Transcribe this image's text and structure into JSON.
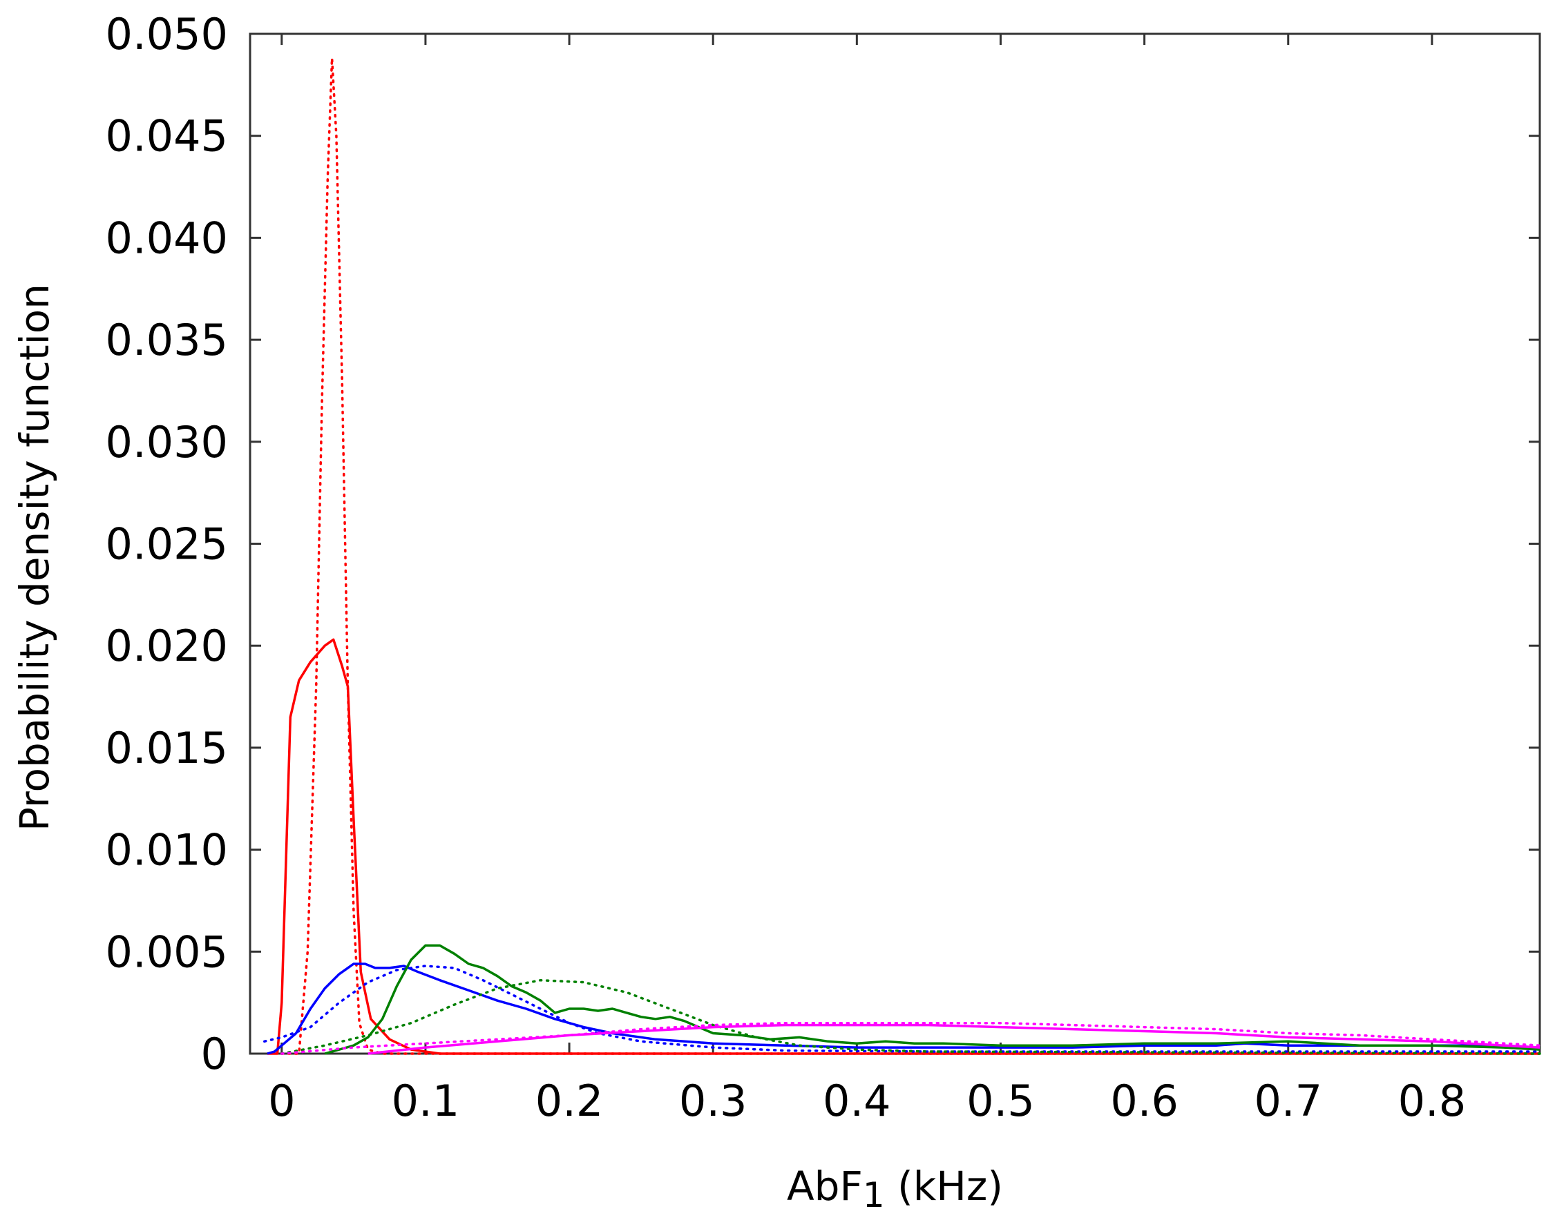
{
  "chart_data": {
    "type": "line",
    "title": "",
    "xlabel": "AbF",
    "xlabel_subscript": "1",
    "xlabel_unit": " (kHz)",
    "ylabel": "Probability density function",
    "xlim": [
      -0.022,
      0.875
    ],
    "ylim": [
      0,
      0.05
    ],
    "grid": false,
    "legend": "none",
    "x_ticks": [
      {
        "value": 0,
        "label": "0"
      },
      {
        "value": 0.1,
        "label": "0.1"
      },
      {
        "value": 0.2,
        "label": "0.2"
      },
      {
        "value": 0.3,
        "label": "0.3"
      },
      {
        "value": 0.4,
        "label": "0.4"
      },
      {
        "value": 0.5,
        "label": "0.5"
      },
      {
        "value": 0.6,
        "label": "0.6"
      },
      {
        "value": 0.7,
        "label": "0.7"
      },
      {
        "value": 0.8,
        "label": "0.8"
      }
    ],
    "y_ticks": [
      {
        "value": 0,
        "label": "0"
      },
      {
        "value": 0.005,
        "label": "0.005"
      },
      {
        "value": 0.01,
        "label": "0.010"
      },
      {
        "value": 0.015,
        "label": "0.015"
      },
      {
        "value": 0.02,
        "label": "0.020"
      },
      {
        "value": 0.025,
        "label": "0.025"
      },
      {
        "value": 0.03,
        "label": "0.030"
      },
      {
        "value": 0.035,
        "label": "0.035"
      },
      {
        "value": 0.04,
        "label": "0.040"
      },
      {
        "value": 0.045,
        "label": "0.045"
      },
      {
        "value": 0.05,
        "label": "0.050"
      }
    ],
    "series": [
      {
        "color": "#ff0000",
        "style": "dotted",
        "points": [
          [
            0.0,
            0.0
          ],
          [
            0.012,
            0.0
          ],
          [
            0.018,
            0.005
          ],
          [
            0.024,
            0.018
          ],
          [
            0.028,
            0.032
          ],
          [
            0.032,
            0.043
          ],
          [
            0.035,
            0.0488
          ],
          [
            0.038,
            0.045
          ],
          [
            0.042,
            0.033
          ],
          [
            0.046,
            0.018
          ],
          [
            0.05,
            0.007
          ],
          [
            0.054,
            0.0015
          ],
          [
            0.06,
            0.0002
          ],
          [
            0.07,
            0.0
          ],
          [
            0.875,
            0.0
          ]
        ]
      },
      {
        "color": "#ff0000",
        "style": "solid",
        "points": [
          [
            -0.01,
            0.0
          ],
          [
            -0.003,
            0.0
          ],
          [
            0.0,
            0.0025
          ],
          [
            0.006,
            0.0165
          ],
          [
            0.012,
            0.0183
          ],
          [
            0.02,
            0.0192
          ],
          [
            0.03,
            0.02
          ],
          [
            0.036,
            0.0203
          ],
          [
            0.042,
            0.019
          ],
          [
            0.046,
            0.018
          ],
          [
            0.05,
            0.0115
          ],
          [
            0.055,
            0.004
          ],
          [
            0.062,
            0.0017
          ],
          [
            0.075,
            0.0007
          ],
          [
            0.09,
            0.0002
          ],
          [
            0.11,
            0.0
          ],
          [
            0.875,
            0.0
          ]
        ]
      },
      {
        "color": "#0000ff",
        "style": "dotted",
        "points": [
          [
            -0.012,
            0.0006
          ],
          [
            0.0,
            0.0008
          ],
          [
            0.02,
            0.0013
          ],
          [
            0.04,
            0.0025
          ],
          [
            0.06,
            0.0035
          ],
          [
            0.08,
            0.0041
          ],
          [
            0.1,
            0.0043
          ],
          [
            0.12,
            0.0042
          ],
          [
            0.14,
            0.0036
          ],
          [
            0.16,
            0.0029
          ],
          [
            0.18,
            0.0022
          ],
          [
            0.2,
            0.0015
          ],
          [
            0.22,
            0.001
          ],
          [
            0.25,
            0.0006
          ],
          [
            0.3,
            0.0003
          ],
          [
            0.35,
            0.00015
          ],
          [
            0.45,
            0.0001
          ],
          [
            0.6,
            0.0001
          ],
          [
            0.75,
            0.0001
          ],
          [
            0.875,
            0.0001
          ]
        ]
      },
      {
        "color": "#0000ff",
        "style": "solid",
        "points": [
          [
            -0.01,
            0.0
          ],
          [
            -0.005,
            0.0001
          ],
          [
            0.0,
            0.0004
          ],
          [
            0.01,
            0.001
          ],
          [
            0.02,
            0.0022
          ],
          [
            0.03,
            0.0032
          ],
          [
            0.04,
            0.0039
          ],
          [
            0.05,
            0.0044
          ],
          [
            0.058,
            0.0044
          ],
          [
            0.065,
            0.0042
          ],
          [
            0.075,
            0.0042
          ],
          [
            0.085,
            0.0043
          ],
          [
            0.095,
            0.004
          ],
          [
            0.11,
            0.0036
          ],
          [
            0.13,
            0.0031
          ],
          [
            0.15,
            0.0026
          ],
          [
            0.17,
            0.0022
          ],
          [
            0.19,
            0.0017
          ],
          [
            0.21,
            0.0013
          ],
          [
            0.23,
            0.001
          ],
          [
            0.26,
            0.0007
          ],
          [
            0.3,
            0.0005
          ],
          [
            0.35,
            0.0004
          ],
          [
            0.4,
            0.0003
          ],
          [
            0.45,
            0.0003
          ],
          [
            0.5,
            0.0003
          ],
          [
            0.55,
            0.0003
          ],
          [
            0.6,
            0.0004
          ],
          [
            0.65,
            0.0004
          ],
          [
            0.67,
            0.0005
          ],
          [
            0.7,
            0.0004
          ],
          [
            0.75,
            0.0004
          ],
          [
            0.8,
            0.0004
          ],
          [
            0.85,
            0.0004
          ],
          [
            0.875,
            0.0003
          ]
        ]
      },
      {
        "color": "#008000",
        "style": "dotted",
        "points": [
          [
            0.0,
            0.0
          ],
          [
            0.03,
            0.0004
          ],
          [
            0.06,
            0.0009
          ],
          [
            0.09,
            0.0015
          ],
          [
            0.12,
            0.0024
          ],
          [
            0.15,
            0.0032
          ],
          [
            0.18,
            0.0036
          ],
          [
            0.21,
            0.0035
          ],
          [
            0.24,
            0.003
          ],
          [
            0.27,
            0.0022
          ],
          [
            0.3,
            0.0014
          ],
          [
            0.33,
            0.0008
          ],
          [
            0.36,
            0.0004
          ],
          [
            0.4,
            0.0002
          ],
          [
            0.45,
            0.0001
          ],
          [
            0.875,
            0.0
          ]
        ]
      },
      {
        "color": "#008000",
        "style": "solid",
        "points": [
          [
            0.03,
            0.0
          ],
          [
            0.05,
            0.0004
          ],
          [
            0.06,
            0.0008
          ],
          [
            0.07,
            0.0017
          ],
          [
            0.08,
            0.0033
          ],
          [
            0.09,
            0.0046
          ],
          [
            0.1,
            0.0053
          ],
          [
            0.11,
            0.0053
          ],
          [
            0.12,
            0.0049
          ],
          [
            0.13,
            0.0044
          ],
          [
            0.14,
            0.0042
          ],
          [
            0.15,
            0.0038
          ],
          [
            0.16,
            0.0033
          ],
          [
            0.17,
            0.003
          ],
          [
            0.18,
            0.0026
          ],
          [
            0.19,
            0.002
          ],
          [
            0.2,
            0.0022
          ],
          [
            0.21,
            0.0022
          ],
          [
            0.22,
            0.0021
          ],
          [
            0.23,
            0.0022
          ],
          [
            0.24,
            0.002
          ],
          [
            0.25,
            0.0018
          ],
          [
            0.26,
            0.0017
          ],
          [
            0.27,
            0.0018
          ],
          [
            0.28,
            0.0016
          ],
          [
            0.29,
            0.0013
          ],
          [
            0.3,
            0.001
          ],
          [
            0.32,
            0.0009
          ],
          [
            0.34,
            0.0007
          ],
          [
            0.36,
            0.0008
          ],
          [
            0.38,
            0.0006
          ],
          [
            0.4,
            0.0005
          ],
          [
            0.42,
            0.0006
          ],
          [
            0.44,
            0.0005
          ],
          [
            0.46,
            0.0005
          ],
          [
            0.5,
            0.0004
          ],
          [
            0.55,
            0.0004
          ],
          [
            0.6,
            0.0005
          ],
          [
            0.65,
            0.0005
          ],
          [
            0.7,
            0.0006
          ],
          [
            0.75,
            0.0004
          ],
          [
            0.8,
            0.0004
          ],
          [
            0.85,
            0.0003
          ],
          [
            0.875,
            0.0002
          ]
        ]
      },
      {
        "color": "#ff00ff",
        "style": "dotted",
        "points": [
          [
            0.0,
            0.0
          ],
          [
            0.05,
            0.0003
          ],
          [
            0.1,
            0.0005
          ],
          [
            0.15,
            0.0007
          ],
          [
            0.2,
            0.0009
          ],
          [
            0.25,
            0.0012
          ],
          [
            0.3,
            0.0014
          ],
          [
            0.35,
            0.0015
          ],
          [
            0.4,
            0.0015
          ],
          [
            0.45,
            0.0015
          ],
          [
            0.5,
            0.0015
          ],
          [
            0.55,
            0.0014
          ],
          [
            0.6,
            0.0013
          ],
          [
            0.65,
            0.0012
          ],
          [
            0.7,
            0.001
          ],
          [
            0.75,
            0.0009
          ],
          [
            0.8,
            0.0007
          ],
          [
            0.85,
            0.0005
          ],
          [
            0.875,
            0.0004
          ]
        ]
      },
      {
        "color": "#ff00ff",
        "style": "solid",
        "points": [
          [
            0.06,
            0.0
          ],
          [
            0.1,
            0.0003
          ],
          [
            0.15,
            0.0006
          ],
          [
            0.2,
            0.0009
          ],
          [
            0.25,
            0.0011
          ],
          [
            0.3,
            0.0013
          ],
          [
            0.35,
            0.0014
          ],
          [
            0.4,
            0.0014
          ],
          [
            0.45,
            0.0014
          ],
          [
            0.5,
            0.0013
          ],
          [
            0.55,
            0.0012
          ],
          [
            0.6,
            0.0011
          ],
          [
            0.65,
            0.001
          ],
          [
            0.7,
            0.0008
          ],
          [
            0.75,
            0.0007
          ],
          [
            0.8,
            0.0006
          ],
          [
            0.85,
            0.0004
          ],
          [
            0.875,
            0.0003
          ]
        ]
      }
    ]
  }
}
